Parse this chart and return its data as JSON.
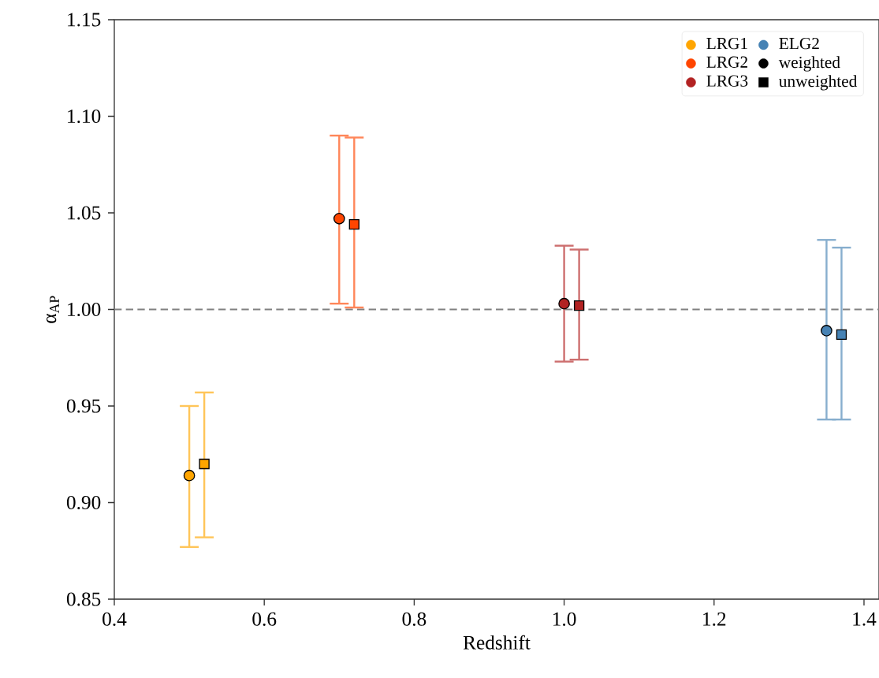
{
  "chart_data": {
    "type": "scatter",
    "xlabel": "Redshift",
    "ylabel": "α$_{AP}$",
    "xlim": [
      0.4,
      1.42
    ],
    "ylim": [
      0.85,
      1.15
    ],
    "xticks": [
      0.4,
      0.6,
      0.8,
      {
        "value": 1,
        "label": "1.0"
      },
      1.2,
      1.4
    ],
    "yticks": [
      0.85,
      {
        "value": 0.9,
        "label": "0.90"
      },
      0.95,
      {
        "value": 1,
        "label": "1.00"
      },
      1.05,
      {
        "value": 1.1,
        "label": "1.10"
      },
      1.15
    ],
    "legend": "top right",
    "grid": false,
    "ref_lines": [
      {
        "axis": "y",
        "value": 1,
        "color": "#808080",
        "line_style": "dashed"
      }
    ],
    "series": [
      {
        "name": "LRG1",
        "color": "#ffa500",
        "marker": "circle",
        "x": [
          0.5
        ],
        "values": [
          0.914
        ],
        "errors": [
          [
            0.877,
            0.95
          ]
        ]
      },
      {
        "color": "#ffa500",
        "marker": "square",
        "x": [
          0.52
        ],
        "values": [
          0.92
        ],
        "errors": [
          [
            0.882,
            0.957
          ]
        ]
      },
      {
        "name": "LRG2",
        "color": "#ff4500",
        "marker": "circle",
        "x": [
          0.7
        ],
        "values": [
          1.047
        ],
        "errors": [
          [
            1.003,
            1.09
          ]
        ]
      },
      {
        "color": "#ff4500",
        "marker": "square",
        "x": [
          0.72
        ],
        "values": [
          1.044
        ],
        "errors": [
          [
            1.001,
            1.089
          ]
        ]
      },
      {
        "name": "LRG3",
        "color": "#b22222",
        "marker": "circle",
        "x": [
          1.0
        ],
        "values": [
          1.003
        ],
        "errors": [
          [
            0.973,
            1.033
          ]
        ]
      },
      {
        "color": "#b22222",
        "marker": "square",
        "x": [
          1.02
        ],
        "values": [
          1.002
        ],
        "errors": [
          [
            0.974,
            1.031
          ]
        ]
      },
      {
        "name": "ELG2",
        "color": "#4682b4",
        "marker": "circle",
        "x": [
          1.35
        ],
        "values": [
          0.989
        ],
        "errors": [
          [
            0.943,
            1.036
          ]
        ]
      },
      {
        "color": "#4682b4",
        "marker": "square",
        "x": [
          1.37
        ],
        "values": [
          0.987
        ],
        "errors": [
          [
            0.943,
            1.032
          ]
        ]
      },
      {
        "name": "weighted",
        "color": "#000000",
        "marker": "circle"
      },
      {
        "name": "unweighted",
        "color": "#000000",
        "marker": "square"
      }
    ]
  }
}
